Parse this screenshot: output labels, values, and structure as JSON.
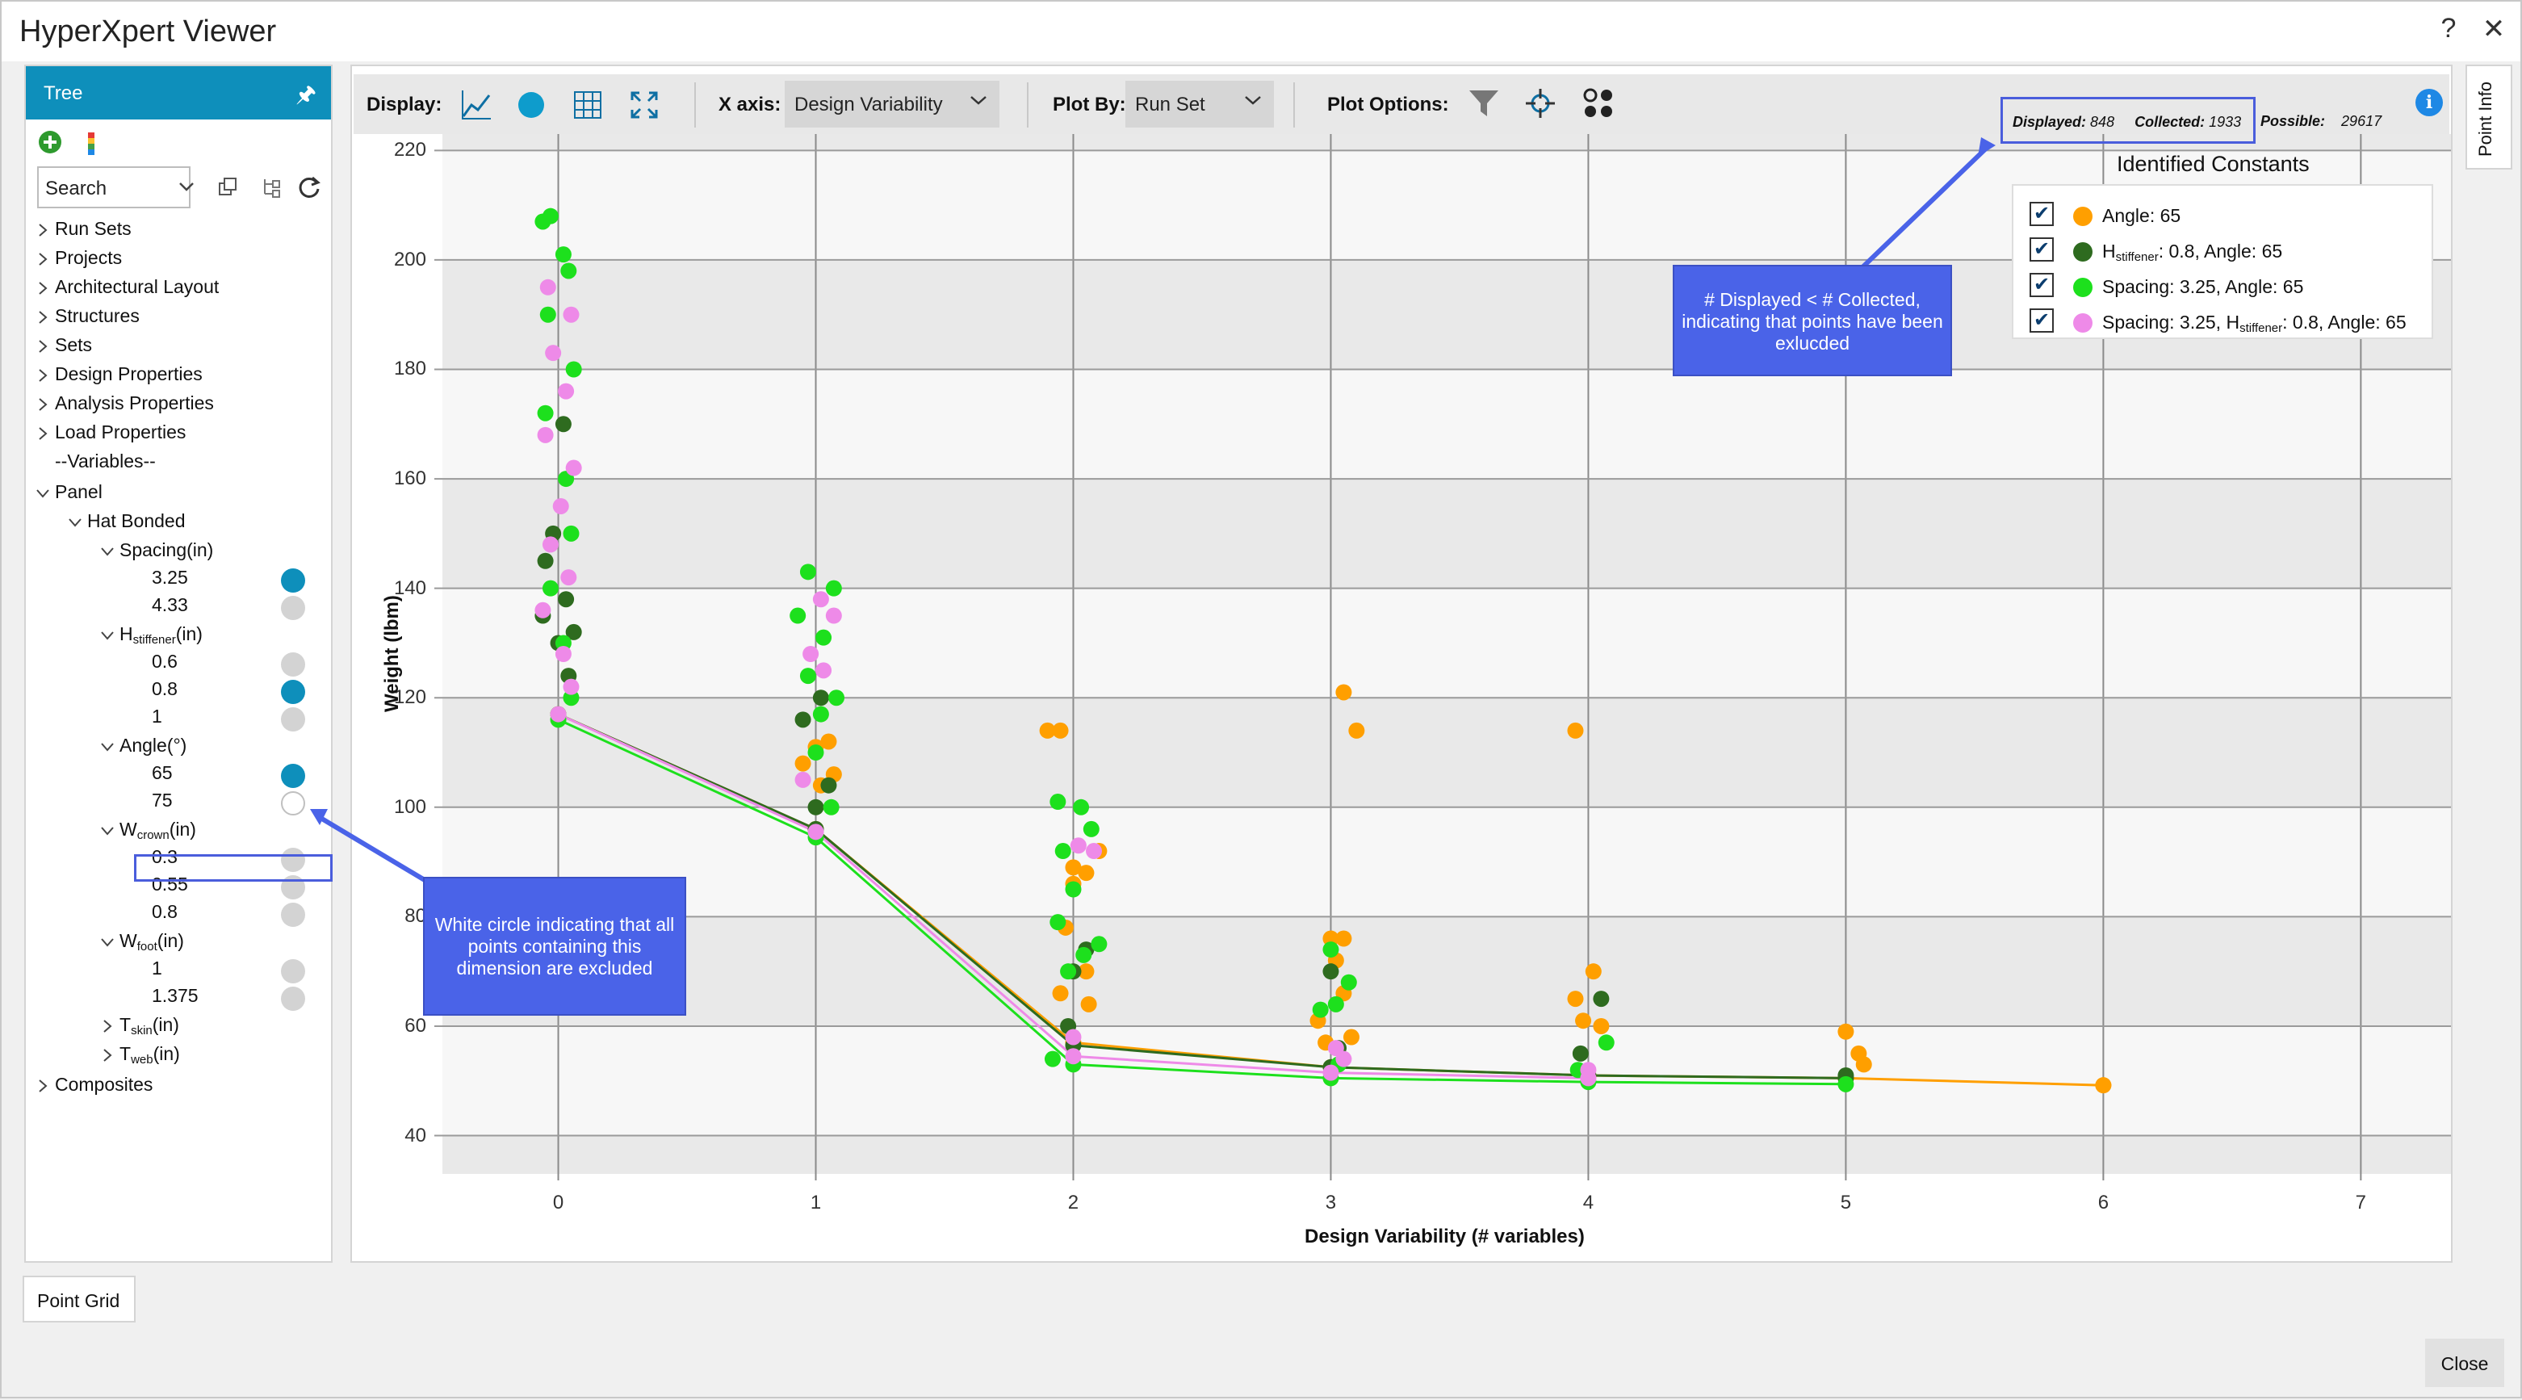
{
  "window": {
    "title": "HyperXpert Viewer",
    "help": "?",
    "close": "✕"
  },
  "tree": {
    "header": "Tree",
    "pin": "🖈",
    "search_placeholder": "Search",
    "items": [
      {
        "label": "Run Sets"
      },
      {
        "label": "Projects"
      },
      {
        "label": "Architectural Layout"
      },
      {
        "label": "Structures"
      },
      {
        "label": "Sets"
      },
      {
        "label": "Design Properties"
      },
      {
        "label": "Analysis Properties"
      },
      {
        "label": "Load Properties"
      },
      {
        "label": "--Variables--"
      },
      {
        "label": "Panel"
      },
      {
        "label": "Hat Bonded"
      },
      {
        "label": "Spacing(in)"
      },
      {
        "label": "3.25"
      },
      {
        "label": "4.33"
      },
      {
        "label": "H",
        "sub": "stiffener",
        "suffix": "(in)"
      },
      {
        "label": "0.6"
      },
      {
        "label": "0.8"
      },
      {
        "label": "1"
      },
      {
        "label": "Angle(°)"
      },
      {
        "label": "65"
      },
      {
        "label": "75"
      },
      {
        "label": "W",
        "sub": "crown",
        "suffix": "(in)"
      },
      {
        "label": "0.3"
      },
      {
        "label": "0.55"
      },
      {
        "label": "0.8"
      },
      {
        "label": "W",
        "sub": "foot",
        "suffix": "(in)"
      },
      {
        "label": "1"
      },
      {
        "label": "1.375"
      },
      {
        "label": "T",
        "sub": "skin",
        "suffix": "(in)"
      },
      {
        "label": "T",
        "sub": "web",
        "suffix": "(in)"
      },
      {
        "label": "Composites"
      }
    ]
  },
  "toolbar": {
    "display_label": "Display:",
    "xaxis_label": "X axis:",
    "xaxis_value": "Design Variability",
    "plotby_label": "Plot By:",
    "plotby_value": "Run Set",
    "plotoptions_label": "Plot Options:"
  },
  "counts": {
    "displayed_label": "Displayed:",
    "displayed": "848",
    "collected_label": "Collected:",
    "collected": "1933",
    "possible_label": "Possible:",
    "possible": "29617"
  },
  "legend": {
    "title": "Identified Constants",
    "items": [
      {
        "color": "#ff9f00",
        "text": "Angle: 65"
      },
      {
        "color": "#2e6b1f",
        "prefix": "H",
        "sub": "stiffener",
        "text": ": 0.8, Angle: 65"
      },
      {
        "color": "#1de01d",
        "text": "Spacing: 3.25, Angle: 65"
      },
      {
        "color": "#ee8ae8",
        "prefix": "Spacing: 3.25, H",
        "sub": "stiffener",
        "text": ": 0.8, Angle: 65"
      }
    ]
  },
  "annotations": {
    "displayed": "# Displayed < # Collected, indicating that points have been exlucded",
    "white_circle": "White circle indicating that all points containing this dimension are excluded"
  },
  "side_tab": "Point Info",
  "bottom_tab": "Point Grid",
  "close_button": "Close",
  "chart_data": {
    "type": "scatter",
    "xlabel": "Design Variability (# variables)",
    "ylabel": "Weight (lbm)",
    "xlim": [
      -0.45,
      7.35
    ],
    "ylim": [
      33,
      223
    ],
    "xticks": [
      0,
      1,
      2,
      3,
      4,
      5,
      6,
      7
    ],
    "yticks": [
      40,
      60,
      80,
      100,
      120,
      140,
      160,
      180,
      200,
      220
    ],
    "series": [
      {
        "name": "Angle: 65",
        "color": "#ff9f00",
        "front": [
          [
            0,
            117
          ],
          [
            1,
            96
          ],
          [
            2,
            57
          ],
          [
            3,
            52.5
          ],
          [
            4,
            51
          ],
          [
            5,
            50.5
          ],
          [
            6,
            49.2
          ]
        ],
        "points": [
          [
            1.9,
            114
          ],
          [
            1.95,
            114
          ],
          [
            3.95,
            114
          ],
          [
            3.05,
            121
          ],
          [
            3.1,
            114
          ],
          [
            5,
            59
          ],
          [
            5.05,
            55
          ],
          [
            5.07,
            53
          ],
          [
            6,
            49.2
          ],
          [
            2,
            89
          ],
          [
            2,
            86
          ],
          [
            2.05,
            70
          ],
          [
            1.95,
            66
          ],
          [
            3,
            76
          ],
          [
            3.02,
            72
          ],
          [
            3.05,
            76
          ],
          [
            2.95,
            61
          ],
          [
            3.95,
            65
          ],
          [
            4.02,
            70
          ],
          [
            3.98,
            61
          ],
          [
            4.05,
            60
          ],
          [
            1,
            111
          ],
          [
            1.05,
            112
          ],
          [
            0.95,
            108
          ],
          [
            1.02,
            104
          ],
          [
            1.07,
            106
          ],
          [
            2.05,
            88
          ],
          [
            2.1,
            92
          ],
          [
            1.97,
            78
          ],
          [
            2.06,
            64
          ],
          [
            3.05,
            66
          ],
          [
            3.08,
            58
          ],
          [
            2.98,
            57
          ]
        ]
      },
      {
        "name": "H stiffener: 0.8, Angle: 65",
        "color": "#2e6b1f",
        "front": [
          [
            0,
            117
          ],
          [
            1,
            96
          ],
          [
            2,
            56.5
          ],
          [
            3,
            52.5
          ],
          [
            4,
            51
          ],
          [
            5,
            50.5
          ]
        ],
        "points": [
          [
            0,
            130
          ],
          [
            0.03,
            138
          ],
          [
            -0.05,
            145
          ],
          [
            0.06,
            132
          ],
          [
            -0.02,
            150
          ],
          [
            0.04,
            124
          ],
          [
            -0.06,
            135
          ],
          [
            0.02,
            170
          ],
          [
            1,
            100
          ],
          [
            1.05,
            104
          ],
          [
            0.95,
            116
          ],
          [
            1.02,
            120
          ],
          [
            2,
            70
          ],
          [
            2.05,
            74
          ],
          [
            1.98,
            60
          ],
          [
            3,
            70
          ],
          [
            3.03,
            56
          ],
          [
            4.05,
            65
          ],
          [
            3.97,
            55
          ],
          [
            5,
            51
          ]
        ]
      },
      {
        "name": "Spacing: 3.25, Angle: 65",
        "color": "#1de01d",
        "front": [
          [
            0,
            116
          ],
          [
            1,
            94.5
          ],
          [
            2,
            53
          ],
          [
            3,
            50.5
          ],
          [
            4,
            49.8
          ],
          [
            5,
            49.4
          ]
        ],
        "points": [
          [
            -0.06,
            207
          ],
          [
            -0.03,
            208
          ],
          [
            0.02,
            201
          ],
          [
            0.04,
            198
          ],
          [
            -0.04,
            190
          ],
          [
            0.06,
            180
          ],
          [
            -0.05,
            172
          ],
          [
            0.03,
            160
          ],
          [
            0.05,
            150
          ],
          [
            -0.03,
            140
          ],
          [
            0.02,
            130
          ],
          [
            0.05,
            120
          ],
          [
            0.97,
            143
          ],
          [
            1.07,
            140
          ],
          [
            0.93,
            135
          ],
          [
            1.03,
            131
          ],
          [
            0.97,
            124
          ],
          [
            1.08,
            120
          ],
          [
            1.02,
            117
          ],
          [
            1,
            110
          ],
          [
            1.06,
            100
          ],
          [
            1.94,
            101
          ],
          [
            2.03,
            100
          ],
          [
            2.07,
            96
          ],
          [
            1.96,
            92
          ],
          [
            2,
            85
          ],
          [
            1.94,
            79
          ],
          [
            2.1,
            75
          ],
          [
            2.04,
            73
          ],
          [
            1.98,
            70
          ],
          [
            1.92,
            54
          ],
          [
            3,
            74
          ],
          [
            3.07,
            68
          ],
          [
            3.02,
            64
          ],
          [
            2.96,
            63
          ],
          [
            3.03,
            53
          ],
          [
            4.07,
            57
          ],
          [
            3.96,
            52
          ]
        ]
      },
      {
        "name": "Spacing: 3.25, H stiffener: 0.8, Angle: 65",
        "color": "#ee8ae8",
        "front": [
          [
            0,
            117
          ],
          [
            1,
            95.5
          ],
          [
            2,
            54.5
          ],
          [
            3,
            51.5
          ],
          [
            4,
            50.5
          ]
        ],
        "points": [
          [
            -0.04,
            195
          ],
          [
            0.05,
            190
          ],
          [
            -0.02,
            183
          ],
          [
            0.03,
            176
          ],
          [
            -0.05,
            168
          ],
          [
            0.06,
            162
          ],
          [
            0.01,
            155
          ],
          [
            -0.03,
            148
          ],
          [
            0.04,
            142
          ],
          [
            -0.06,
            136
          ],
          [
            0.02,
            128
          ],
          [
            0.05,
            122
          ],
          [
            1.02,
            138
          ],
          [
            1.07,
            135
          ],
          [
            0.98,
            128
          ],
          [
            1.03,
            125
          ],
          [
            0.95,
            105
          ],
          [
            2.02,
            93
          ],
          [
            2.08,
            92
          ],
          [
            2,
            58
          ],
          [
            3.05,
            54
          ],
          [
            3.02,
            56
          ],
          [
            4,
            52
          ]
        ]
      }
    ]
  }
}
